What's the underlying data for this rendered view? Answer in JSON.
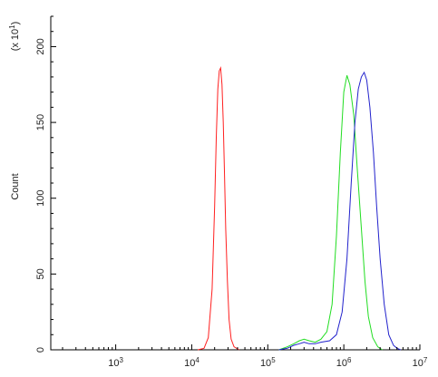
{
  "chart_data": {
    "type": "line",
    "title": "",
    "xlabel": "",
    "ylabel": "Count",
    "y_multiplier_label": "(x 10",
    "y_multiplier_exp": "1",
    "y_multiplier_close": ")",
    "xscale": "log",
    "xlim": [
      140,
      10000000
    ],
    "ylim": [
      0,
      220
    ],
    "x_ticks": [
      {
        "value": 1000,
        "base": "10",
        "exp": "3"
      },
      {
        "value": 10000,
        "base": "10",
        "exp": "4"
      },
      {
        "value": 100000,
        "base": "10",
        "exp": "5"
      },
      {
        "value": 1000000,
        "base": "10",
        "exp": "6"
      },
      {
        "value": 10000000,
        "base": "10",
        "exp": "7"
      }
    ],
    "y_ticks": [
      {
        "value": 0,
        "label": "0"
      },
      {
        "value": 50,
        "label": "50"
      },
      {
        "value": 100,
        "label": "100"
      },
      {
        "value": 150,
        "label": "150"
      },
      {
        "value": 200,
        "label": "200"
      }
    ],
    "grid": false,
    "series": [
      {
        "color": "#ff2020",
        "x": [
          12000,
          14500,
          16500,
          18500,
          20000,
          21000,
          22000,
          23000,
          24000,
          25000,
          26000,
          27000,
          28000,
          29500,
          31000,
          33000,
          36000,
          42000
        ],
        "y": [
          0,
          1,
          8,
          40,
          95,
          140,
          172,
          184,
          186,
          175,
          150,
          115,
          80,
          45,
          20,
          7,
          2,
          0
        ]
      },
      {
        "color": "#22dd22",
        "x": [
          140000,
          180000,
          220000,
          260000,
          300000,
          350000,
          420000,
          500000,
          600000,
          700000,
          800000,
          900000,
          1000000,
          1100000,
          1200000,
          1350000,
          1500000,
          1700000,
          1900000,
          2100000,
          2400000,
          2800000,
          3200000
        ],
        "y": [
          0,
          2,
          4,
          6,
          7,
          6,
          5,
          7,
          12,
          30,
          75,
          130,
          170,
          181,
          175,
          155,
          120,
          80,
          45,
          22,
          8,
          2,
          0
        ]
      },
      {
        "color": "#2222cc",
        "x": [
          140000,
          180000,
          220000,
          260000,
          300000,
          350000,
          420000,
          500000,
          650000,
          800000,
          950000,
          1100000,
          1250000,
          1400000,
          1550000,
          1700000,
          1850000,
          2000000,
          2200000,
          2450000,
          2700000,
          3000000,
          3400000,
          3900000,
          4500000,
          5000000,
          5600000
        ],
        "y": [
          0,
          1,
          3,
          4,
          5,
          4,
          4,
          5,
          6,
          10,
          25,
          60,
          110,
          150,
          172,
          180,
          183,
          178,
          160,
          130,
          95,
          60,
          30,
          10,
          3,
          1,
          0
        ]
      }
    ]
  }
}
